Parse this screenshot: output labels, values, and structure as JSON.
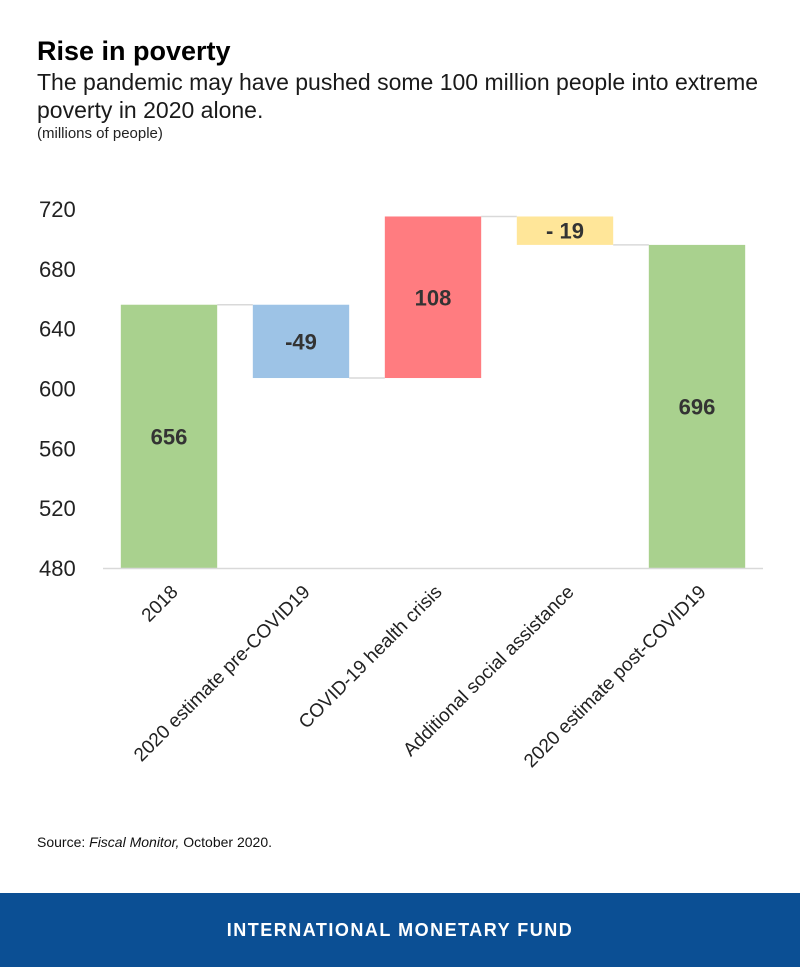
{
  "header": {
    "title": "Rise in poverty",
    "subtitle": "The pandemic may have pushed some 100 million people into extreme poverty in 2020 alone.",
    "unit": "(millions of people)"
  },
  "source": {
    "prefix": "Source: ",
    "publication": "Fiscal Monitor,",
    "suffix": " October 2020."
  },
  "footer": {
    "org": "INTERNATIONAL MONETARY FUND"
  },
  "chart_data": {
    "type": "bar",
    "subtype": "waterfall",
    "categories": [
      "2018",
      "2020 estimate pre-COVID19",
      "COVID-19 health crisis",
      "Additional social assistance",
      "2020 estimate post-COVID19"
    ],
    "bars": [
      {
        "label": "656",
        "start": 480,
        "end": 656,
        "color": "#a9d18e"
      },
      {
        "label": "-49",
        "start": 656,
        "end": 607,
        "color": "#9dc3e6"
      },
      {
        "label": "108",
        "start": 607,
        "end": 715,
        "color": "#ff7c80"
      },
      {
        "label": "- 19",
        "start": 715,
        "end": 696,
        "color": "#ffe699"
      },
      {
        "label": "696",
        "start": 480,
        "end": 696,
        "color": "#a9d18e"
      }
    ],
    "yticks": [
      "480",
      "520",
      "560",
      "600",
      "640",
      "680",
      "720"
    ],
    "ylim": [
      480,
      720
    ],
    "xlabel": "",
    "ylabel": "",
    "grid": false,
    "connector_color": "#d9d9d9"
  }
}
